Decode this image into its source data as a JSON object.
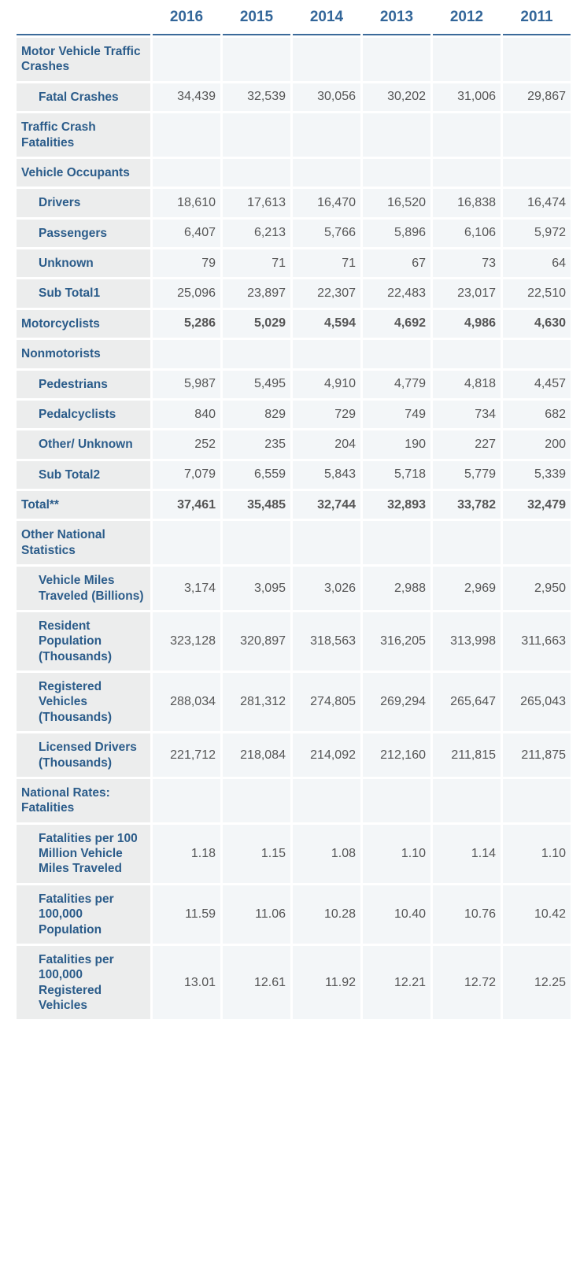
{
  "colors": {
    "header_text": "#336699",
    "header_border": "#3b6a9a",
    "label_bg": "#eceded",
    "label_text": "#2b5c8a",
    "cell_bg": "#f3f6f8",
    "cell_text": "#555555",
    "spacing_bg": "#ffffff"
  },
  "years": [
    "2016",
    "2015",
    "2014",
    "2013",
    "2012",
    "2011"
  ],
  "rows": [
    {
      "kind": "section",
      "indent": 0,
      "label": "Motor Vehicle Traffic Crashes"
    },
    {
      "kind": "data",
      "indent": 1,
      "label": "Fatal Crashes",
      "values": [
        "34,439",
        "32,539",
        "30,056",
        "30,202",
        "31,006",
        "29,867"
      ]
    },
    {
      "kind": "section",
      "indent": 0,
      "label": "Traffic Crash Fatalities"
    },
    {
      "kind": "section",
      "indent": 0,
      "label": "Vehicle Occupants"
    },
    {
      "kind": "data",
      "indent": 1,
      "label": "Drivers",
      "values": [
        "18,610",
        "17,613",
        "16,470",
        "16,520",
        "16,838",
        "16,474"
      ]
    },
    {
      "kind": "data",
      "indent": 1,
      "label": "Passengers",
      "values": [
        "6,407",
        "6,213",
        "5,766",
        "5,896",
        "6,106",
        "5,972"
      ]
    },
    {
      "kind": "data",
      "indent": 1,
      "label": "Unknown",
      "values": [
        "79",
        "71",
        "71",
        "67",
        "73",
        "64"
      ]
    },
    {
      "kind": "data",
      "indent": 1,
      "label": "Sub Total1",
      "values": [
        "25,096",
        "23,897",
        "22,307",
        "22,483",
        "23,017",
        "22,510"
      ]
    },
    {
      "kind": "data",
      "indent": 0,
      "bold": true,
      "label": "Motorcyclists",
      "values": [
        "5,286",
        "5,029",
        "4,594",
        "4,692",
        "4,986",
        "4,630"
      ]
    },
    {
      "kind": "section",
      "indent": 0,
      "label": "Nonmotorists"
    },
    {
      "kind": "data",
      "indent": 1,
      "label": "Pedestrians",
      "values": [
        "5,987",
        "5,495",
        "4,910",
        "4,779",
        "4,818",
        "4,457"
      ]
    },
    {
      "kind": "data",
      "indent": 1,
      "label": "Pedalcyclists",
      "values": [
        "840",
        "829",
        "729",
        "749",
        "734",
        "682"
      ]
    },
    {
      "kind": "data",
      "indent": 1,
      "label": "Other/\nUnknown",
      "values": [
        "252",
        "235",
        "204",
        "190",
        "227",
        "200"
      ]
    },
    {
      "kind": "data",
      "indent": 1,
      "label": "Sub Total2",
      "values": [
        "7,079",
        "6,559",
        "5,843",
        "5,718",
        "5,779",
        "5,339"
      ]
    },
    {
      "kind": "data",
      "indent": 0,
      "bold": true,
      "label": "Total**",
      "values": [
        "37,461",
        "35,485",
        "32,744",
        "32,893",
        "33,782",
        "32,479"
      ]
    },
    {
      "kind": "section",
      "indent": 0,
      "label": "Other National Statistics"
    },
    {
      "kind": "data",
      "indent": 1,
      "label": "Vehicle Miles Traveled (Billions)",
      "values": [
        "3,174",
        "3,095",
        "3,026",
        "2,988",
        "2,969",
        "2,950"
      ]
    },
    {
      "kind": "data",
      "indent": 1,
      "label": "Resident Population (Thousands)",
      "values": [
        "323,128",
        "320,897",
        "318,563",
        "316,205",
        "313,998",
        "311,663"
      ]
    },
    {
      "kind": "data",
      "indent": 1,
      "label": "Registered Vehicles (Thousands)",
      "values": [
        "288,034",
        "281,312",
        "274,805",
        "269,294",
        "265,647",
        "265,043"
      ]
    },
    {
      "kind": "data",
      "indent": 1,
      "label": "Licensed Drivers (Thousands)",
      "values": [
        "221,712",
        "218,084",
        "214,092",
        "212,160",
        "211,815",
        "211,875"
      ]
    },
    {
      "kind": "section",
      "indent": 0,
      "label": "National Rates: Fatalities"
    },
    {
      "kind": "data",
      "indent": 1,
      "label": "Fatalities per 100 Million Vehicle Miles Traveled",
      "values": [
        "1.18",
        "1.15",
        "1.08",
        "1.10",
        "1.14",
        "1.10"
      ]
    },
    {
      "kind": "data",
      "indent": 1,
      "label": "Fatalities per 100,000 Population",
      "values": [
        "11.59",
        "11.06",
        "10.28",
        "10.40",
        "10.76",
        "10.42"
      ]
    },
    {
      "kind": "data",
      "indent": 1,
      "label": "Fatalities per 100,000 Registered Vehicles",
      "values": [
        "13.01",
        "12.61",
        "11.92",
        "12.21",
        "12.72",
        "12.25"
      ]
    }
  ]
}
